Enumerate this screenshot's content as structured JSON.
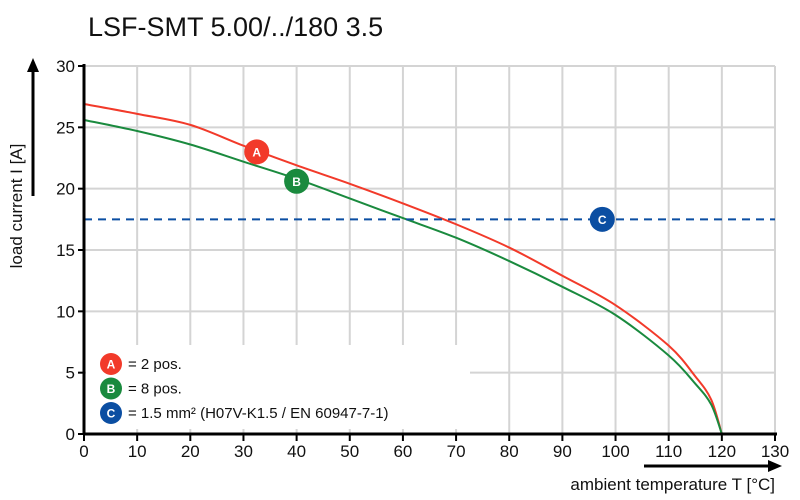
{
  "chart_data": {
    "type": "line",
    "title": "LSF-SMT 5.00/../180 3.5",
    "xlabel": "ambient temperature T [°C]",
    "ylabel": "load current I [A]",
    "xlim": [
      0,
      130
    ],
    "ylim": [
      0,
      30
    ],
    "xticks": [
      0,
      10,
      20,
      30,
      40,
      50,
      60,
      70,
      80,
      90,
      100,
      110,
      120,
      130
    ],
    "yticks": [
      0,
      5,
      10,
      15,
      20,
      25,
      30
    ],
    "grid": true,
    "legend_position": "bottom-left",
    "series": [
      {
        "id": "A",
        "label": "= 2 pos.",
        "color": "#f23a2a",
        "x": [
          0,
          10,
          20,
          30,
          40,
          50,
          60,
          70,
          80,
          90,
          100,
          110,
          115,
          118,
          120
        ],
        "y": [
          26.9,
          26.1,
          25.2,
          23.5,
          21.9,
          20.4,
          18.8,
          17.1,
          15.2,
          12.9,
          10.5,
          7.2,
          4.7,
          2.8,
          0
        ]
      },
      {
        "id": "B",
        "label": "= 8 pos.",
        "color": "#1a8a3e",
        "x": [
          0,
          10,
          20,
          30,
          40,
          50,
          60,
          70,
          80,
          90,
          100,
          110,
          115,
          118,
          120
        ],
        "y": [
          25.6,
          24.7,
          23.6,
          22.2,
          20.8,
          19.2,
          17.6,
          16.0,
          14.1,
          12.0,
          9.7,
          6.4,
          4.1,
          2.4,
          0
        ]
      },
      {
        "id": "C",
        "label": "= 1.5 mm² (H07V-K1.5 / EN 60947-7-1)",
        "color": "#0b4ea2",
        "style": "dashed",
        "x": [
          0,
          130
        ],
        "y": [
          17.5,
          17.5
        ]
      }
    ],
    "markers": [
      {
        "id": "A",
        "x": 32.5,
        "y": 23.0,
        "color": "#f23a2a"
      },
      {
        "id": "B",
        "x": 40,
        "y": 20.6,
        "color": "#1a8a3e"
      },
      {
        "id": "C",
        "x": 97.5,
        "y": 17.5,
        "color": "#0b4ea2"
      }
    ]
  }
}
